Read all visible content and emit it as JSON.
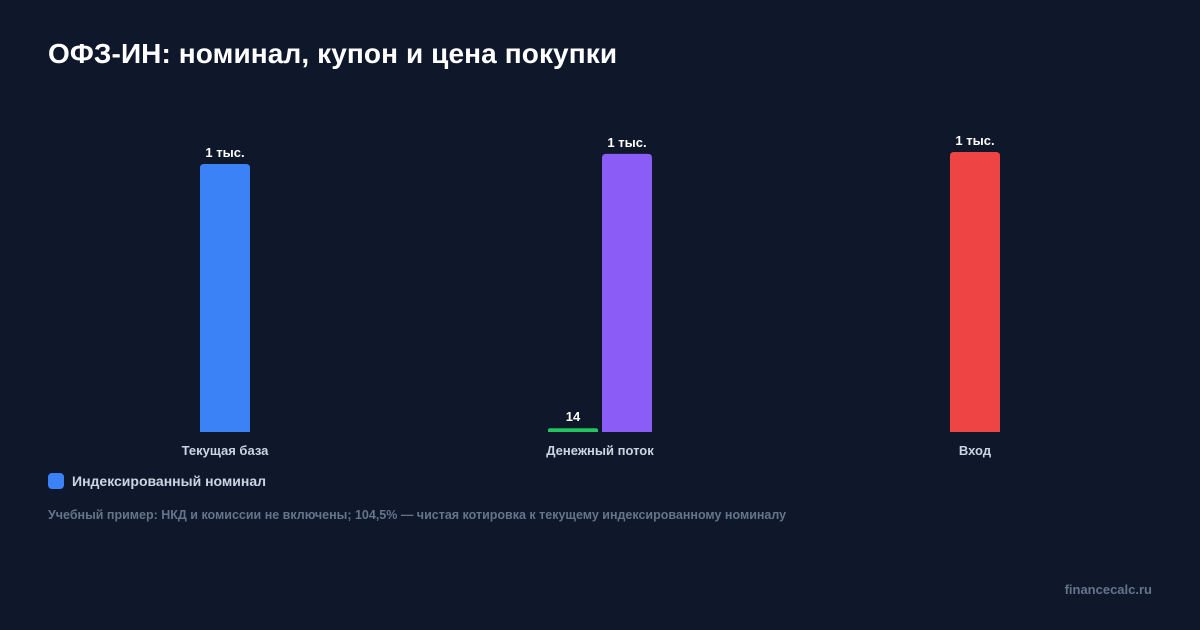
{
  "title": "ОФЗ-ИН: номинал, купон и цена покупки",
  "legend": {
    "label": "Индексированный номинал",
    "color": "#3b82f6"
  },
  "note": "Учебный пример: НКД и комиссии не включены; 104,5% — чистая котировка к текущему индексированному номиналу",
  "footer": "financecalc.ru",
  "chart_data": {
    "type": "bar",
    "categories": [
      "Текущая база",
      "Денежный поток",
      "Вход"
    ],
    "ylim": [
      0,
      1045
    ],
    "bars": [
      {
        "category": "Текущая база",
        "value": 1000,
        "label": "1 тыс.",
        "color": "#3b82f6"
      },
      {
        "category": "Денежный поток",
        "value": 14,
        "label": "14",
        "color": "#22c55e"
      },
      {
        "category": "Денежный поток",
        "value": 1038,
        "label": "1 тыс.",
        "color": "#8b5cf6"
      },
      {
        "category": "Вход",
        "value": 1045,
        "label": "1 тыс.",
        "color": "#ef4444"
      }
    ],
    "grid": false,
    "legend_position": "bottom-left"
  }
}
